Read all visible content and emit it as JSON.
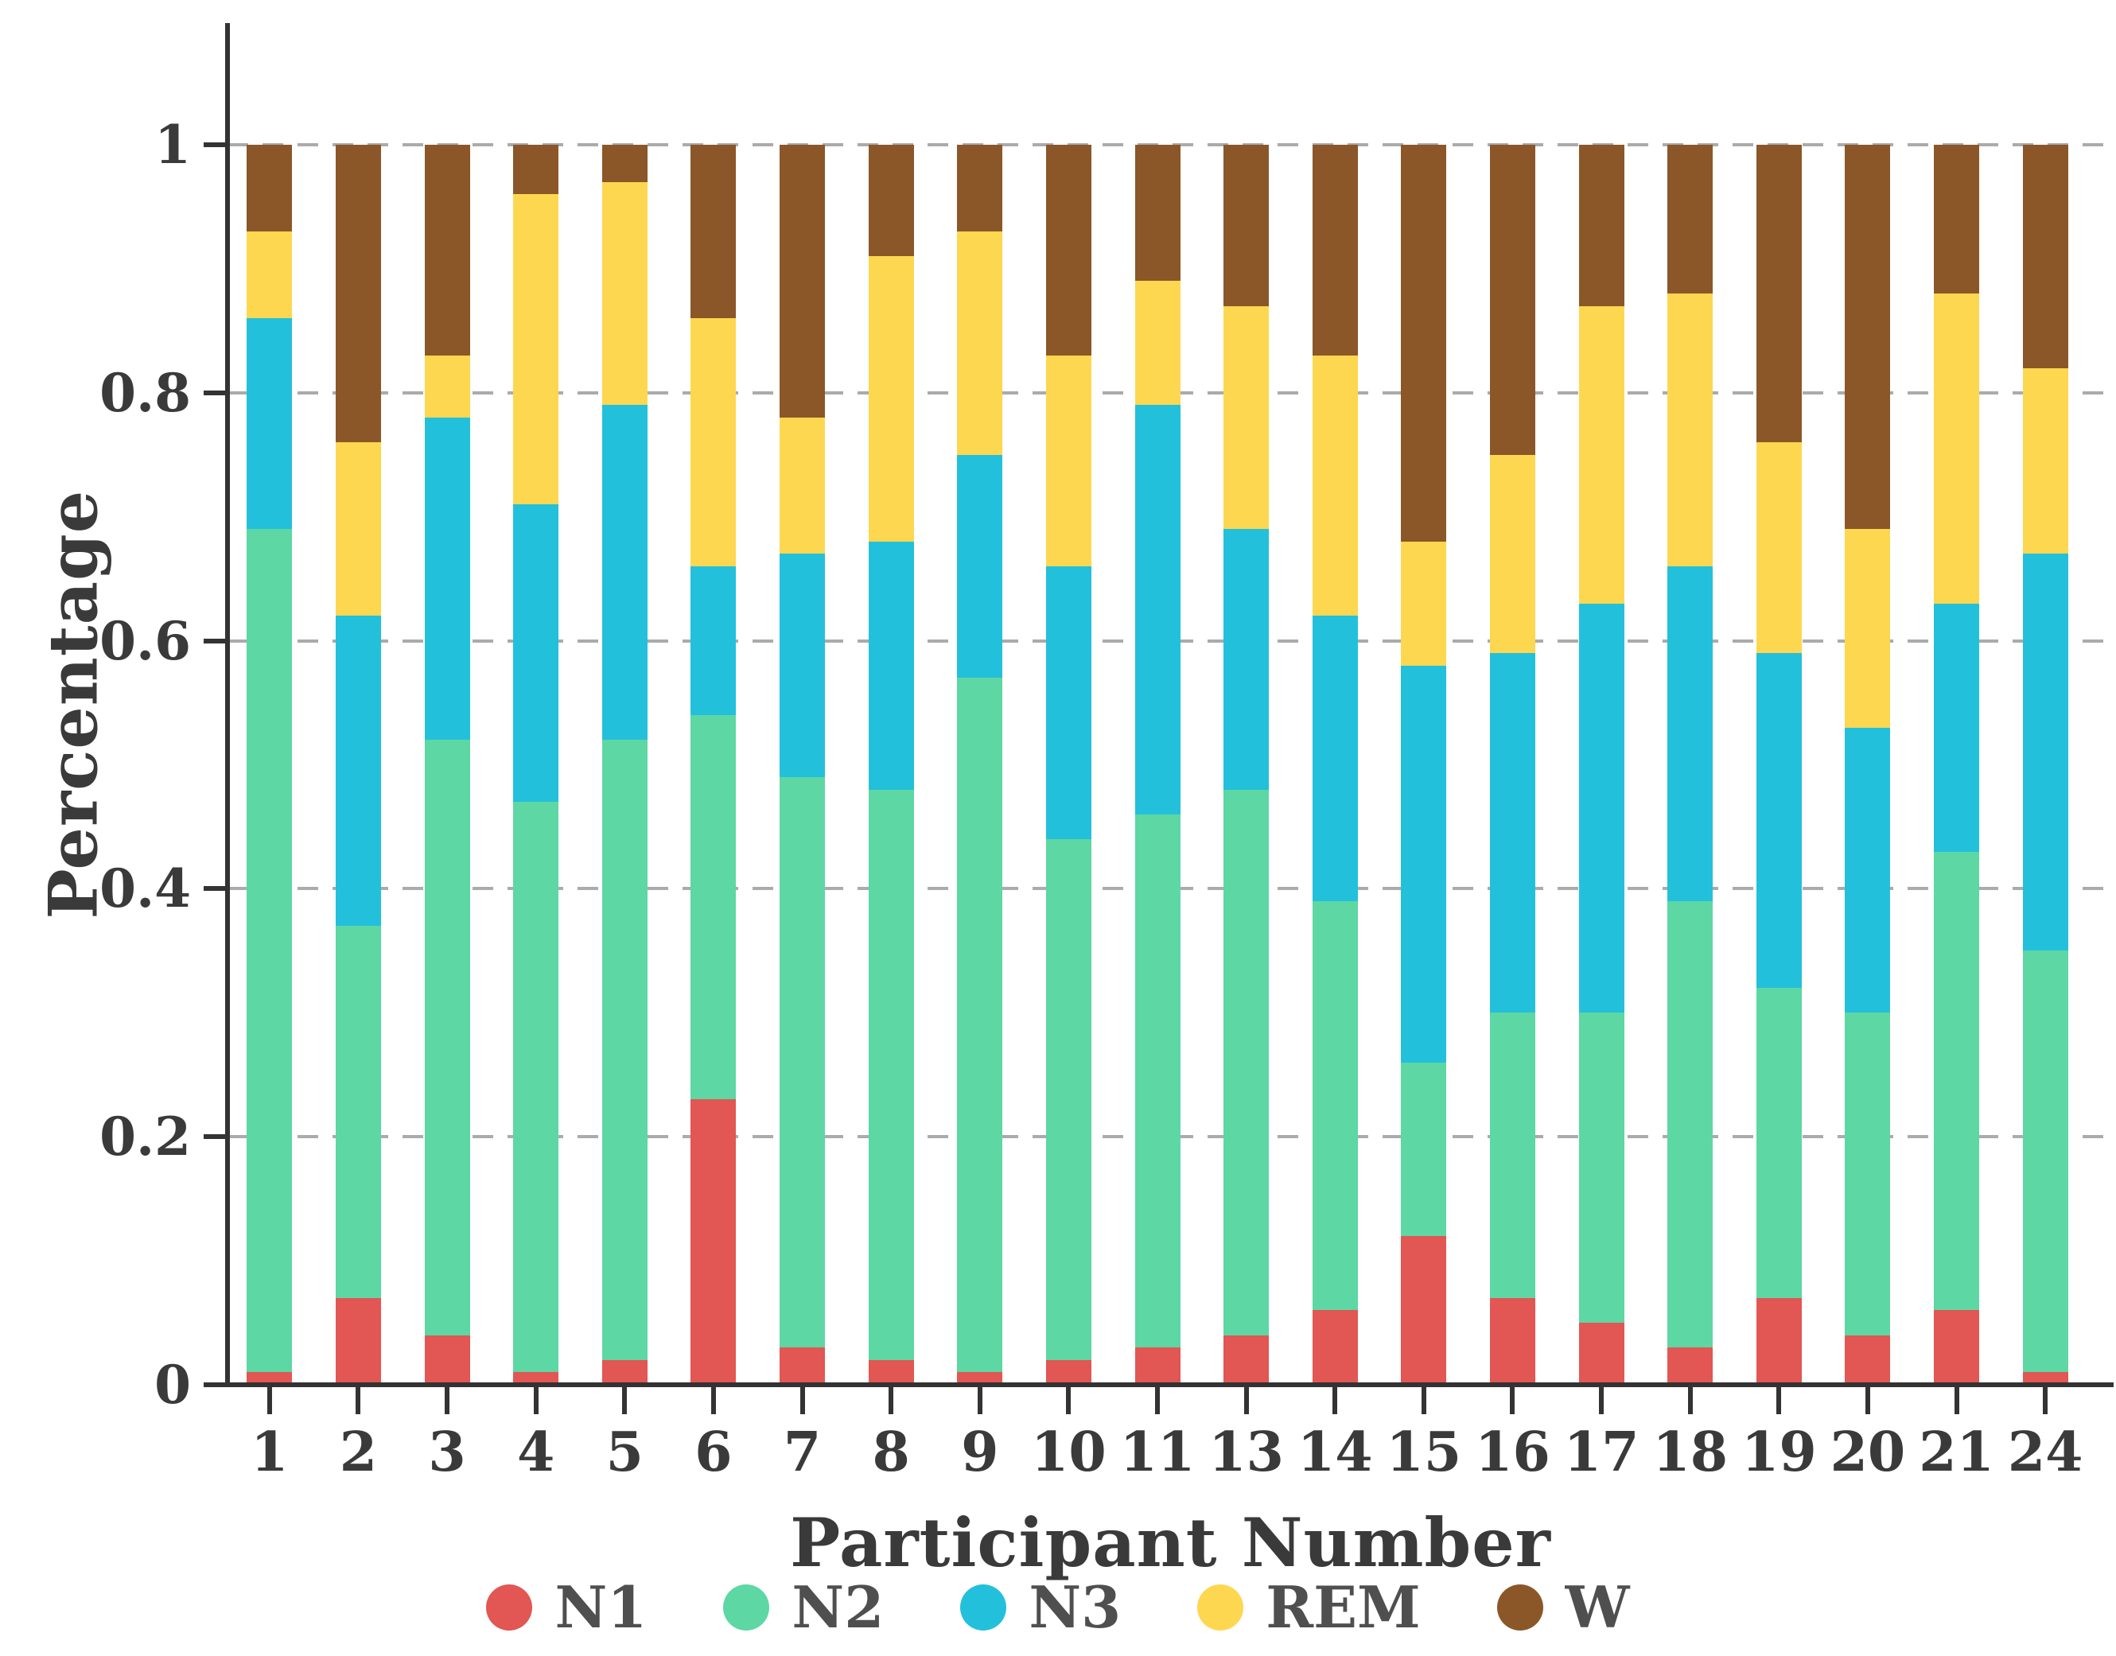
{
  "chart_data": {
    "type": "bar",
    "stacked": true,
    "title": "",
    "xlabel": "Participant Number",
    "ylabel": "Percentage",
    "categories": [
      "1",
      "2",
      "3",
      "4",
      "5",
      "6",
      "7",
      "8",
      "9",
      "10",
      "11",
      "13",
      "14",
      "15",
      "16",
      "17",
      "18",
      "19",
      "20",
      "21",
      "24"
    ],
    "series": [
      {
        "name": "N1",
        "color": "#e25653",
        "values": [
          0.01,
          0.07,
          0.04,
          0.01,
          0.02,
          0.23,
          0.03,
          0.02,
          0.01,
          0.02,
          0.03,
          0.04,
          0.06,
          0.12,
          0.07,
          0.05,
          0.03,
          0.07,
          0.04,
          0.06,
          0.01
        ]
      },
      {
        "name": "N2",
        "color": "#5dd7a3",
        "values": [
          0.68,
          0.3,
          0.48,
          0.46,
          0.5,
          0.31,
          0.46,
          0.46,
          0.56,
          0.42,
          0.43,
          0.44,
          0.33,
          0.14,
          0.23,
          0.25,
          0.36,
          0.25,
          0.26,
          0.37,
          0.34
        ]
      },
      {
        "name": "N3",
        "color": "#23c0db",
        "values": [
          0.17,
          0.25,
          0.26,
          0.24,
          0.27,
          0.12,
          0.18,
          0.2,
          0.18,
          0.22,
          0.33,
          0.21,
          0.23,
          0.32,
          0.29,
          0.33,
          0.27,
          0.27,
          0.23,
          0.2,
          0.32
        ]
      },
      {
        "name": "REM",
        "color": "#fed750",
        "values": [
          0.07,
          0.14,
          0.05,
          0.25,
          0.18,
          0.2,
          0.11,
          0.23,
          0.18,
          0.17,
          0.1,
          0.18,
          0.21,
          0.1,
          0.16,
          0.24,
          0.22,
          0.17,
          0.16,
          0.25,
          0.15
        ]
      },
      {
        "name": "W",
        "color": "#8b5728",
        "values": [
          0.07,
          0.24,
          0.17,
          0.04,
          0.03,
          0.14,
          0.22,
          0.09,
          0.07,
          0.17,
          0.11,
          0.13,
          0.17,
          0.32,
          0.25,
          0.13,
          0.12,
          0.24,
          0.31,
          0.12,
          0.18
        ]
      }
    ],
    "y_ticks": [
      {
        "label": "0",
        "value": 0.0
      },
      {
        "label": "0.2",
        "value": 0.2
      },
      {
        "label": "0.4",
        "value": 0.4
      },
      {
        "label": "0.6",
        "value": 0.6
      },
      {
        "label": "0.8",
        "value": 0.8
      },
      {
        "label": "1",
        "value": 1.0
      }
    ],
    "ylim": [
      0,
      1
    ],
    "grid": "horizontal-dashed",
    "legend_position": "bottom",
    "colors": {
      "axis": "#333333",
      "tick_text": "#3a3a3a",
      "legend_text": "#4f4f4f",
      "gridline": "#ababab",
      "background": "#ffffff"
    }
  }
}
